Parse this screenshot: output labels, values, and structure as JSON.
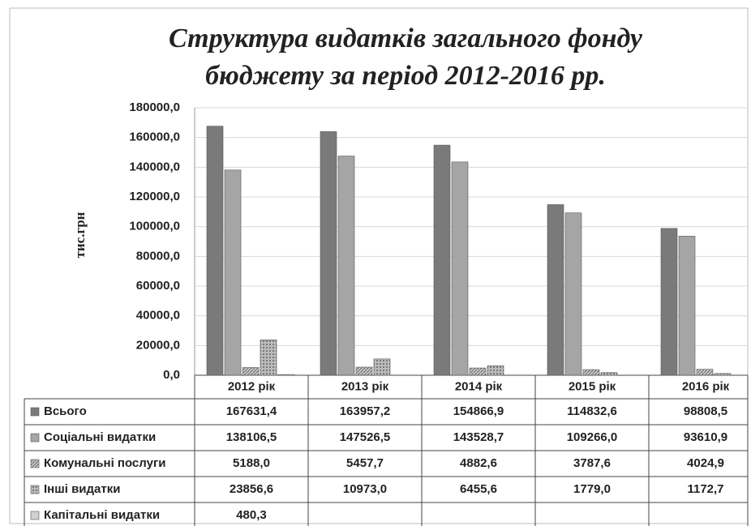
{
  "chart_data": {
    "type": "bar",
    "title": [
      "Структура видатків загального фонду",
      "бюджету за період 2012-2016 рр."
    ],
    "ylabel": "тис.грн",
    "categories": [
      "2012 рік",
      "2013 рік",
      "2014 рік",
      "2015 рік",
      "2016 рік"
    ],
    "series": [
      {
        "name": "Всього",
        "color": "#7a7a7a",
        "values": [
          167631.4,
          163957.2,
          154866.9,
          114832.6,
          98808.5
        ],
        "value_labels": [
          "167631,4",
          "163957,2",
          "154866,9",
          "114832,6",
          "98808,5"
        ]
      },
      {
        "name": "Соціальні видатки",
        "color": "#a5a5a5",
        "values": [
          138106.5,
          147526.5,
          143528.7,
          109266.0,
          93610.9
        ],
        "value_labels": [
          "138106,5",
          "147526,5",
          "143528,7",
          "109266,0",
          "93610,9"
        ]
      },
      {
        "name": "Комунальні послуги",
        "color": "url(#hatch)",
        "values": [
          5188.0,
          5457.7,
          4882.6,
          3787.6,
          4024.9
        ],
        "value_labels": [
          "5188,0",
          "5457,7",
          "4882,6",
          "3787,6",
          "4024,9"
        ]
      },
      {
        "name": "Інші видатки",
        "color": "url(#dots)",
        "values": [
          23856.6,
          10973.0,
          6455.6,
          1779.0,
          1172.7
        ],
        "value_labels": [
          "23856,6",
          "10973,0",
          "6455,6",
          "1779,0",
          "1172,7"
        ]
      },
      {
        "name": "Капітальні видатки",
        "color": "#d0d0d0",
        "values": [
          480.3,
          null,
          null,
          null,
          null
        ],
        "value_labels": [
          "480,3",
          null,
          null,
          null,
          null
        ]
      }
    ],
    "ylim": [
      0,
      180000
    ],
    "yticks": [
      {
        "value": 0,
        "label": "0,0"
      },
      {
        "value": 20000,
        "label": "20000,0"
      },
      {
        "value": 40000,
        "label": "40000,0"
      },
      {
        "value": 60000,
        "label": "60000,0"
      },
      {
        "value": 80000,
        "label": "80000,0"
      },
      {
        "value": 100000,
        "label": "100000,0"
      },
      {
        "value": 120000,
        "label": "120000,0"
      },
      {
        "value": 140000,
        "label": "140000,0"
      },
      {
        "value": 160000,
        "label": "160000,0"
      },
      {
        "value": 180000,
        "label": "180000,0"
      }
    ],
    "grid": true
  }
}
